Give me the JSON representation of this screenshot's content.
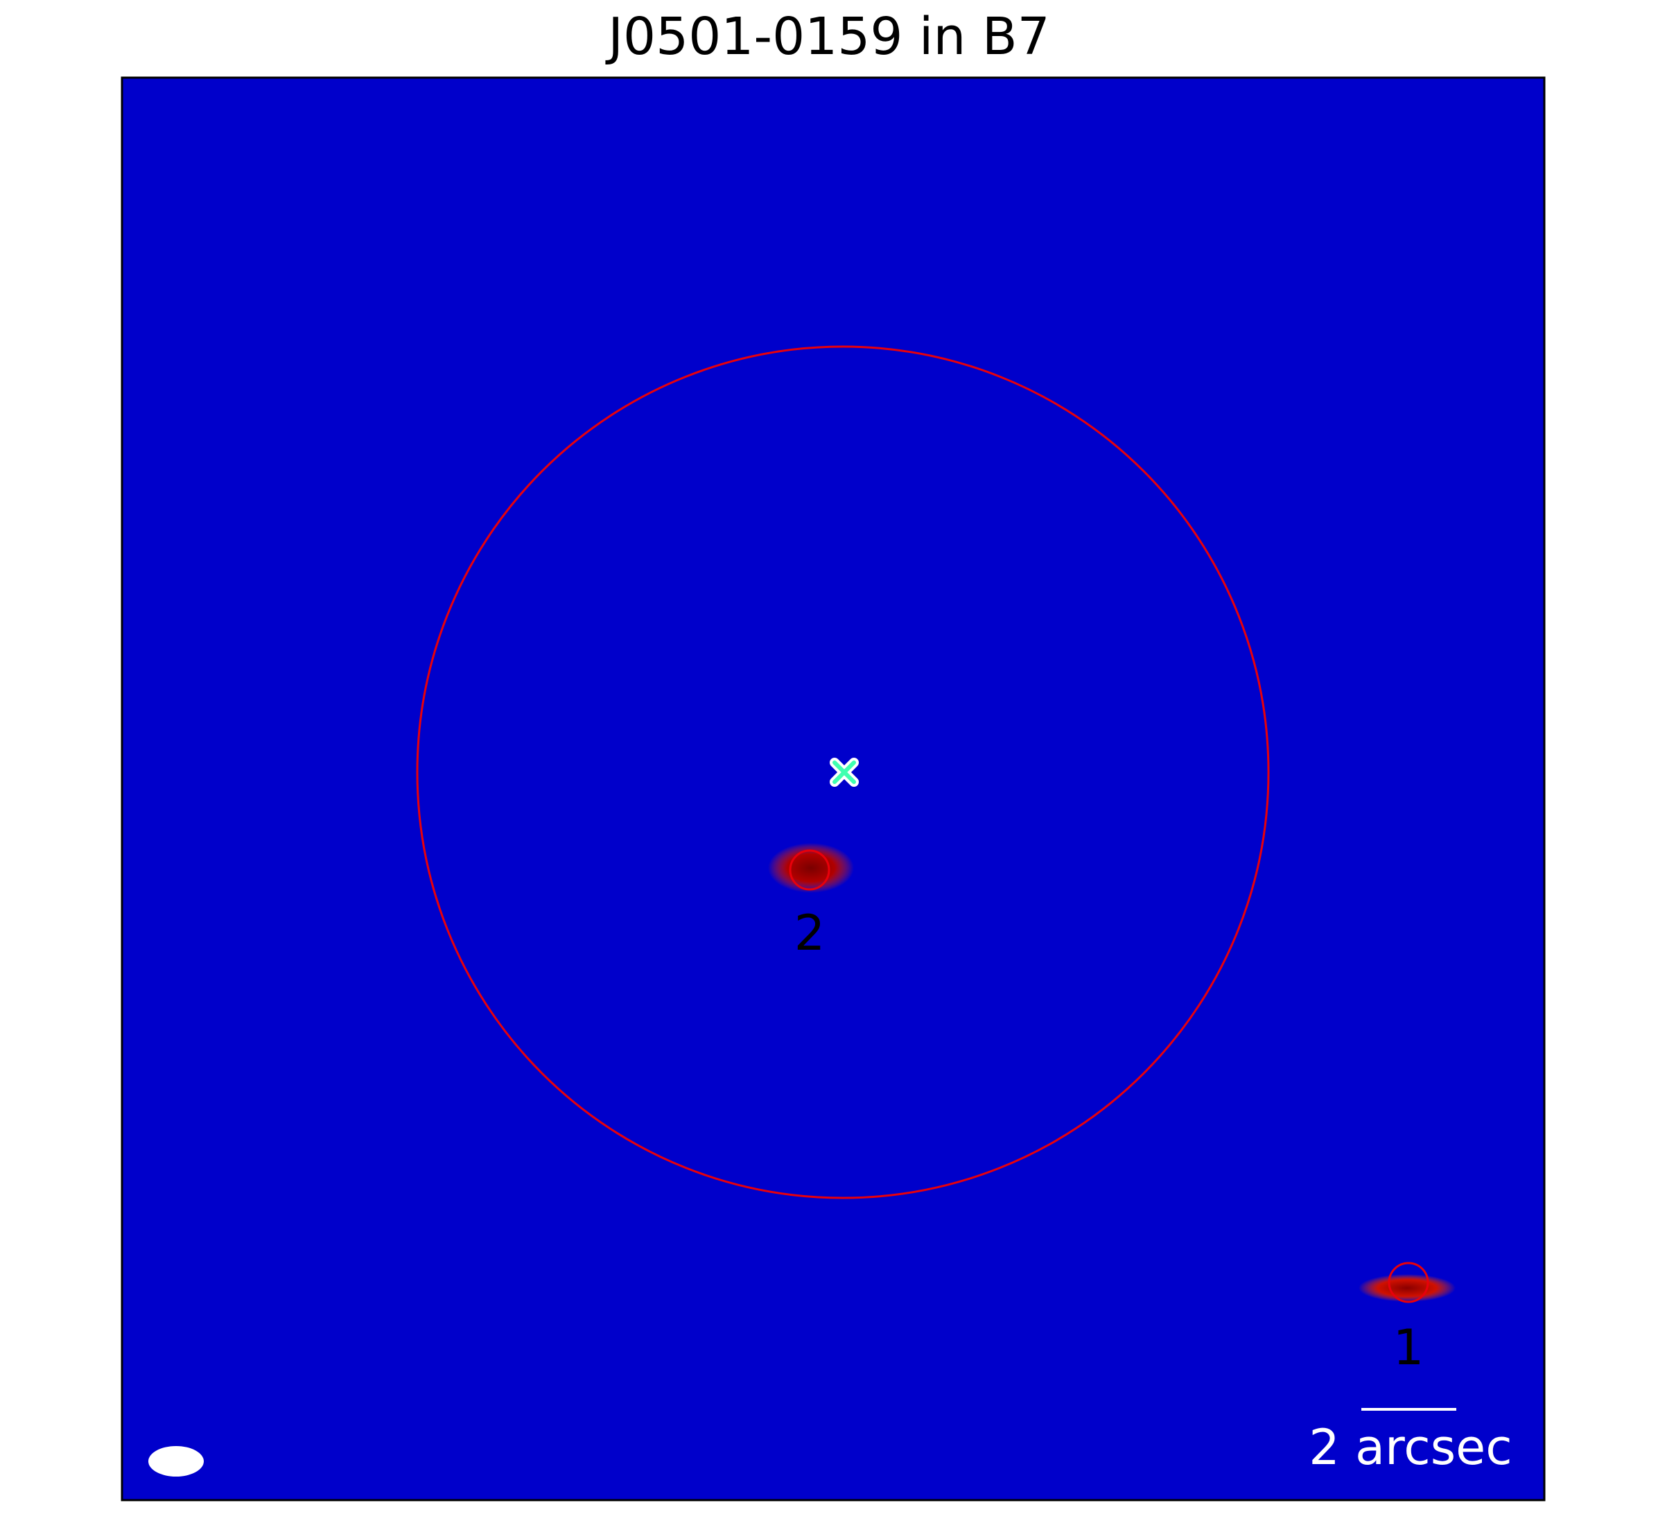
{
  "title": "J0501-0159 in B7",
  "sources": [
    {
      "label": "2"
    },
    {
      "label": "1"
    }
  ],
  "scalebar": {
    "label": "2 arcsec"
  },
  "colors": {
    "frame": "#000000",
    "circles": "#e8000b",
    "marker": "#ffffff",
    "colormap": "jet"
  },
  "icons": {
    "center_marker": "x-marker-icon",
    "beam": "beam-ellipse-icon"
  }
}
